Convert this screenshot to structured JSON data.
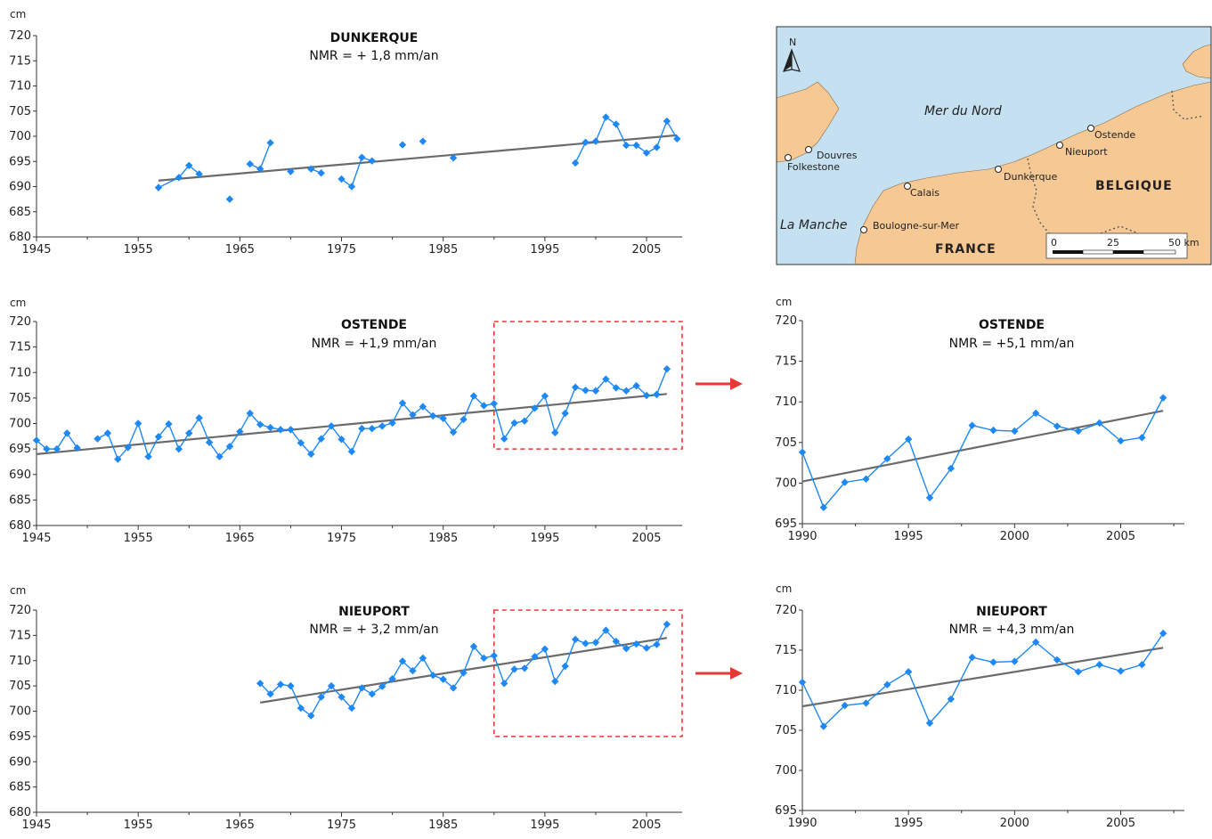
{
  "chart_data": [
    {
      "id": "dunkerque",
      "type": "line",
      "title": "DUNKERQUE",
      "subtitle": "NMR = + 1,8 mm/an",
      "ylabel": "cm",
      "xlim": [
        1945,
        2008.5
      ],
      "ylim": [
        680,
        720
      ],
      "xticks": [
        1945,
        1955,
        1965,
        1975,
        1985,
        1995,
        2005
      ],
      "yticks": [
        680,
        685,
        690,
        695,
        700,
        705,
        710,
        715,
        720
      ],
      "trend": [
        [
          1957,
          691.2
        ],
        [
          2008,
          700.2
        ]
      ],
      "series": [
        {
          "x": [
            1957,
            1959,
            1960,
            1961
          ],
          "y": [
            689.8,
            691.8,
            694.2,
            692.5
          ]
        },
        {
          "x": [
            1964
          ],
          "y": [
            687.5
          ]
        },
        {
          "x": [
            1966,
            1967,
            1968
          ],
          "y": [
            694.5,
            693.5,
            698.7
          ]
        },
        {
          "x": [
            1970
          ],
          "y": [
            693.0
          ]
        },
        {
          "x": [
            1972,
            1973
          ],
          "y": [
            693.5,
            692.7
          ]
        },
        {
          "x": [
            1975,
            1976,
            1977,
            1978
          ],
          "y": [
            691.5,
            690.0,
            695.8,
            695.1
          ]
        },
        {
          "x": [
            1981
          ],
          "y": [
            698.3
          ]
        },
        {
          "x": [
            1983
          ],
          "y": [
            699.0
          ]
        },
        {
          "x": [
            1986
          ],
          "y": [
            695.7
          ]
        },
        {
          "x": [
            1998,
            1999,
            2000,
            2001,
            2002,
            2003,
            2004,
            2005,
            2006,
            2007,
            2008
          ],
          "y": [
            694.7,
            698.8,
            699.0,
            703.8,
            702.4,
            698.2,
            698.2,
            696.7,
            697.8,
            703.0,
            699.5
          ]
        }
      ]
    },
    {
      "id": "ostende-full",
      "type": "line",
      "title": "OSTENDE",
      "subtitle": "NMR = +1,9 mm/an",
      "ylabel": "cm",
      "xlim": [
        1945,
        2008.5
      ],
      "ylim": [
        680,
        720
      ],
      "xticks": [
        1945,
        1955,
        1965,
        1975,
        1985,
        1995,
        2005
      ],
      "yticks": [
        680,
        685,
        690,
        695,
        700,
        705,
        710,
        715,
        720
      ],
      "trend": [
        [
          1945,
          694.0
        ],
        [
          2007,
          705.8
        ]
      ],
      "zoom_box": {
        "x": [
          1990,
          2008.5
        ],
        "y": [
          695,
          720
        ]
      },
      "series": [
        {
          "x": [
            1945,
            1946,
            1947,
            1948,
            1949
          ],
          "y": [
            696.7,
            695.0,
            695.0,
            698.1,
            695.2
          ]
        },
        {
          "x": [
            1951,
            1952,
            1953,
            1954,
            1955,
            1956,
            1957,
            1958,
            1959,
            1960,
            1961,
            1962,
            1963,
            1964,
            1965,
            1966,
            1967,
            1968,
            1969,
            1970,
            1971,
            1972,
            1973,
            1974,
            1975,
            1976,
            1977,
            1978,
            1979,
            1980,
            1981,
            1982,
            1983,
            1984,
            1985,
            1986,
            1987,
            1988,
            1989,
            1990,
            1991,
            1992,
            1993,
            1994,
            1995,
            1996,
            1997,
            1998,
            1999,
            2000,
            2001,
            2002,
            2003,
            2004,
            2005,
            2006,
            2007
          ],
          "y": [
            697.0,
            698.1,
            693.0,
            695.3,
            700.0,
            693.5,
            697.4,
            699.9,
            695.0,
            698.1,
            701.1,
            696.3,
            693.5,
            695.5,
            698.4,
            702.0,
            699.8,
            699.2,
            698.8,
            698.8,
            696.2,
            694.0,
            697.0,
            699.5,
            696.9,
            694.5,
            699.0,
            699.0,
            699.5,
            700.1,
            704.0,
            701.7,
            703.3,
            701.5,
            701.0,
            698.3,
            700.8,
            705.4,
            703.5,
            703.9,
            697.0,
            700.1,
            700.5,
            703.0,
            705.4,
            698.2,
            702.0,
            707.1,
            706.5,
            706.4,
            708.7,
            707.0,
            706.4,
            707.4,
            705.5,
            705.7,
            710.7
          ]
        }
      ]
    },
    {
      "id": "ostende-zoom",
      "type": "line",
      "title": "OSTENDE",
      "subtitle": "NMR = +5,1 mm/an",
      "ylabel": "cm",
      "xlim": [
        1990,
        2008
      ],
      "ylim": [
        695,
        720
      ],
      "xticks": [
        1990,
        1995,
        2000,
        2005
      ],
      "yticks": [
        695,
        700,
        705,
        710,
        715,
        720
      ],
      "trend": [
        [
          1990,
          700.2
        ],
        [
          2007,
          708.9
        ]
      ],
      "series": [
        {
          "x": [
            1990,
            1991,
            1992,
            1993,
            1994,
            1995,
            1996,
            1997,
            1998,
            1999,
            2000,
            2001,
            2002,
            2003,
            2004,
            2005,
            2006,
            2007
          ],
          "y": [
            703.8,
            697.0,
            700.1,
            700.5,
            703.0,
            705.4,
            698.2,
            701.8,
            707.1,
            706.5,
            706.4,
            708.6,
            707.0,
            706.4,
            707.4,
            705.2,
            705.6,
            710.5
          ]
        }
      ]
    },
    {
      "id": "nieuport-full",
      "type": "line",
      "title": "NIEUPORT",
      "subtitle": "NMR = + 3,2 mm/an",
      "ylabel": "cm",
      "xlim": [
        1945,
        2008.5
      ],
      "ylim": [
        680,
        720
      ],
      "xticks": [
        1945,
        1955,
        1965,
        1975,
        1985,
        1995,
        2005
      ],
      "yticks": [
        680,
        685,
        690,
        695,
        700,
        705,
        710,
        715,
        720
      ],
      "trend": [
        [
          1967,
          701.7
        ],
        [
          2007,
          714.5
        ]
      ],
      "zoom_box": {
        "x": [
          1990,
          2008.5
        ],
        "y": [
          695,
          720
        ]
      },
      "series": [
        {
          "x": [
            1967,
            1968,
            1969,
            1970,
            1971,
            1972,
            1973,
            1974,
            1975,
            1976,
            1977,
            1978,
            1979,
            1980,
            1981,
            1982,
            1983,
            1984,
            1985,
            1986,
            1987,
            1988,
            1989,
            1990,
            1991,
            1992,
            1993,
            1994,
            1995,
            1996,
            1997,
            1998,
            1999,
            2000,
            2001,
            2002,
            2003,
            2004,
            2005,
            2006,
            2007
          ],
          "y": [
            705.5,
            703.4,
            705.3,
            705.0,
            700.6,
            699.1,
            702.8,
            705.0,
            702.8,
            700.6,
            704.6,
            703.4,
            704.9,
            706.4,
            709.9,
            708.0,
            710.5,
            707.1,
            706.3,
            704.6,
            707.6,
            712.8,
            710.5,
            711.0,
            705.5,
            708.3,
            708.5,
            710.8,
            712.3,
            705.9,
            708.9,
            714.2,
            713.4,
            713.6,
            716.0,
            713.8,
            712.4,
            713.3,
            712.5,
            713.2,
            717.2
          ]
        }
      ]
    },
    {
      "id": "nieuport-zoom",
      "type": "line",
      "title": "NIEUPORT",
      "subtitle": "NMR = +4,3 mm/an",
      "ylabel": "cm",
      "xlim": [
        1990,
        2008
      ],
      "ylim": [
        695,
        720
      ],
      "xticks": [
        1990,
        1995,
        2000,
        2005
      ],
      "yticks": [
        695,
        700,
        705,
        710,
        715,
        720
      ],
      "trend": [
        [
          1990,
          708.0
        ],
        [
          2007,
          715.3
        ]
      ],
      "series": [
        {
          "x": [
            1990,
            1991,
            1992,
            1993,
            1994,
            1995,
            1996,
            1997,
            1998,
            1999,
            2000,
            2001,
            2002,
            2003,
            2004,
            2005,
            2006,
            2007
          ],
          "y": [
            711.0,
            705.5,
            708.1,
            708.4,
            710.7,
            712.3,
            705.9,
            708.9,
            714.1,
            713.5,
            713.6,
            716.0,
            713.8,
            712.3,
            713.2,
            712.4,
            713.2,
            717.1
          ]
        }
      ]
    }
  ],
  "map": {
    "north": "N",
    "sea_north": "Mer du Nord",
    "sea_channel": "La Manche",
    "countries": {
      "belgium": "BELGIQUE",
      "france": "FRANCE"
    },
    "cities": [
      "Douvres",
      "Folkestone",
      "Calais",
      "Dunkerque",
      "Nieuport",
      "Ostende",
      "Boulogne-sur-Mer"
    ],
    "scale": {
      "ticks": [
        "0",
        "25",
        "50 km"
      ]
    },
    "colors": {
      "sea": "#c5e0f0",
      "land": "#f6c893"
    }
  },
  "colors": {
    "series": "#1e88f5",
    "trend": "#6b6b6b",
    "zoom_box": "#e53935",
    "arrow": "#e53935"
  }
}
